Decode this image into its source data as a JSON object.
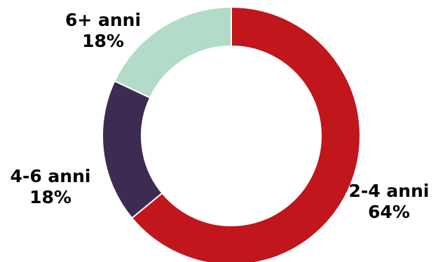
{
  "chart_data": {
    "type": "pie",
    "style": "donut",
    "categories": [
      "2-4 anni",
      "4-6 anni",
      "6+ anni"
    ],
    "values": [
      64,
      18,
      18
    ],
    "value_labels": [
      "64%",
      "18%",
      "18%"
    ],
    "colors": [
      "#c0161c",
      "#3d2b52",
      "#b2dcc7"
    ],
    "title": "",
    "legend": "none"
  }
}
